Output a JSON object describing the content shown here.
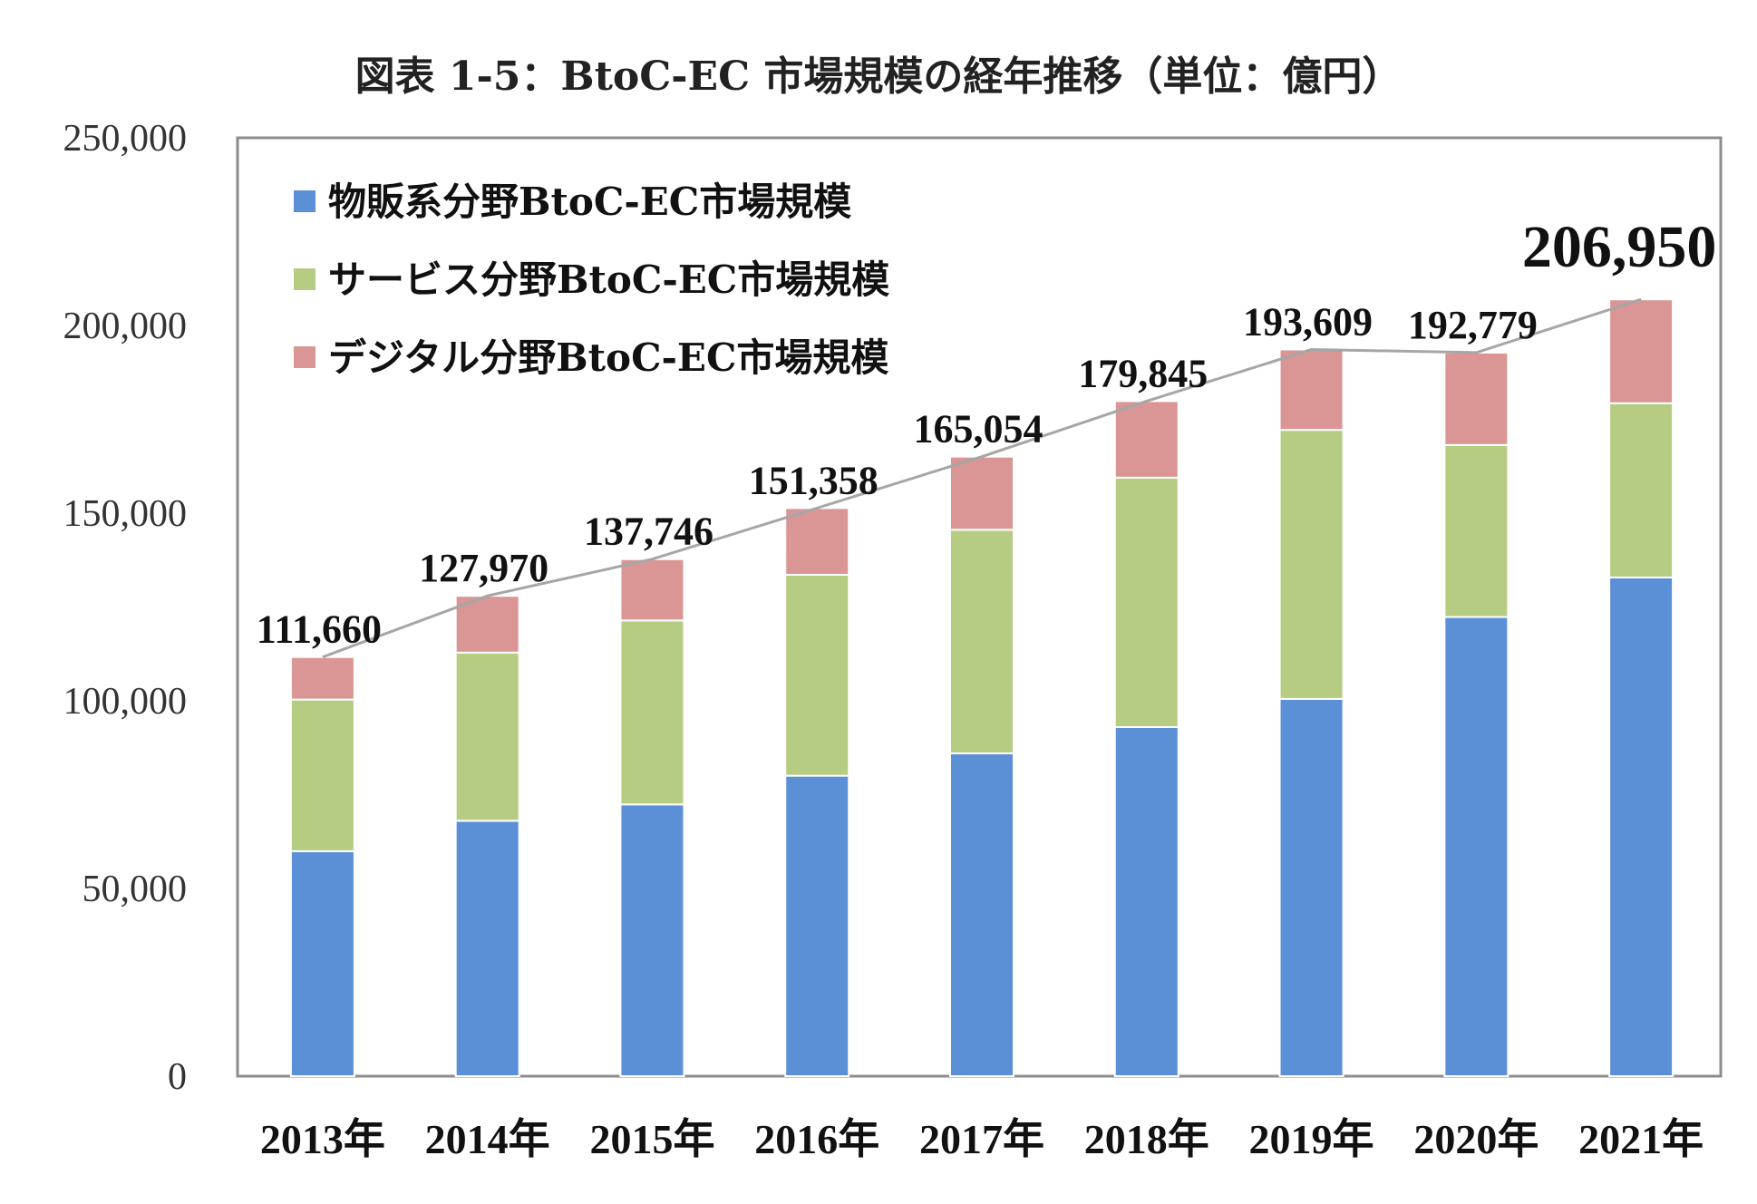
{
  "title": "図表 1-5：BtoC-EC 市場規模の経年推移（単位：億円）",
  "chart_data": {
    "type": "bar",
    "stacked": true,
    "categories": [
      "2013年",
      "2014年",
      "2015年",
      "2016年",
      "2017年",
      "2018年",
      "2019年",
      "2020年",
      "2021年"
    ],
    "series": [
      {
        "name": "物販系分野BtoC-EC市場規模",
        "color": "#5b8fd6",
        "values": [
          59931,
          68043,
          72398,
          80043,
          86008,
          92992,
          100515,
          122333,
          132865
        ]
      },
      {
        "name": "サービス分野BtoC-EC市場規模",
        "color": "#b5cc82",
        "values": [
          40401,
          44816,
          49014,
          53532,
          59568,
          66471,
          71672,
          45832,
          46424
        ]
      },
      {
        "name": "デジタル分野BtoC-EC市場規模",
        "color": "#d99694",
        "values": [
          11328,
          15111,
          16334,
          17783,
          19478,
          20382,
          21422,
          24614,
          27661
        ]
      }
    ],
    "totals": [
      111660,
      127970,
      137746,
      151358,
      165054,
      179845,
      193609,
      192779,
      206950
    ],
    "total_labels": [
      "111,660",
      "127,970",
      "137,746",
      "151,358",
      "165,054",
      "179,845",
      "193,609",
      "192,779",
      "206,950"
    ],
    "highlight_last_total": true,
    "ylim": [
      0,
      250000
    ],
    "yticks": [
      0,
      50000,
      100000,
      150000,
      200000,
      250000
    ],
    "ytick_labels": [
      "0",
      "50,000",
      "100,000",
      "150,000",
      "200,000",
      "250,000"
    ],
    "xlabel": "",
    "ylabel": "",
    "legend_position": "top-left",
    "trend_line": true,
    "trend_line_color": "#a6a6a6",
    "grid": false
  }
}
